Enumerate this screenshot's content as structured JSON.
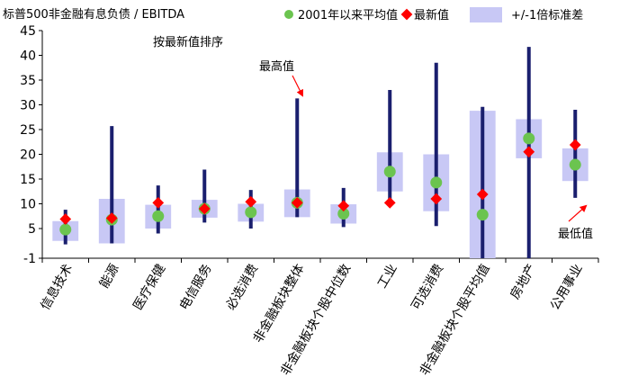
{
  "chart_data": {
    "type": "range-dot",
    "title": "标普500非金融有息负债 / EBITDA",
    "subtitle": "按最新值排序",
    "ylim": [
      -1,
      45
    ],
    "yticks": [
      -1,
      5,
      10,
      15,
      20,
      25,
      30,
      35,
      40,
      45
    ],
    "grid": false,
    "legend_placement": "top",
    "legend": {
      "mean_label": "2001年以来平均值",
      "latest_label": "最新值",
      "band_label": "+/-1倍标准差"
    },
    "colors": {
      "whisker": "#1a1f6e",
      "band": "#c8c8f5",
      "mean": "#6bc44f",
      "latest": "#ff0000"
    },
    "categories": [
      "信息技术",
      "能源",
      "医疗保健",
      "电信服务",
      "必选消费",
      "非金融板块整体",
      "非金融板块个股中位数",
      "工业",
      "可选消费",
      "非金融板块个股平均值",
      "房地产",
      "公用事业"
    ],
    "series": [
      {
        "name": "2001年以来平均值",
        "values": [
          4.8,
          6.8,
          7.5,
          9.0,
          8.3,
          10.2,
          8.0,
          16.5,
          14.3,
          7.8,
          23.2,
          17.9
        ]
      },
      {
        "name": "最新值",
        "values": [
          6.9,
          7.1,
          10.2,
          9.0,
          10.4,
          10.2,
          9.6,
          10.2,
          11.0,
          11.9,
          20.5,
          21.9
        ]
      }
    ],
    "historical_range": {
      "min": [
        1.8,
        2.0,
        4.0,
        6.2,
        5.0,
        7.3,
        5.3,
        10.2,
        5.5,
        -1.0,
        -1.0,
        11.2
      ],
      "max": [
        8.8,
        25.7,
        13.7,
        16.9,
        12.8,
        31.3,
        13.2,
        33.0,
        38.5,
        29.6,
        41.7,
        29.0
      ]
    },
    "std_band": {
      "low": [
        2.5,
        2.0,
        5.0,
        7.2,
        6.4,
        7.3,
        6.0,
        12.5,
        8.5,
        -1.0,
        19.2,
        14.6
      ],
      "high": [
        6.5,
        11.0,
        9.8,
        10.8,
        10.0,
        12.9,
        9.9,
        20.4,
        20.0,
        28.8,
        27.1,
        21.2
      ]
    },
    "annotations": [
      {
        "text": "最高值",
        "category": "非金融板块整体",
        "value": 31.3
      },
      {
        "text": "最低值",
        "category": "公用事业",
        "value": 11.2
      }
    ]
  }
}
